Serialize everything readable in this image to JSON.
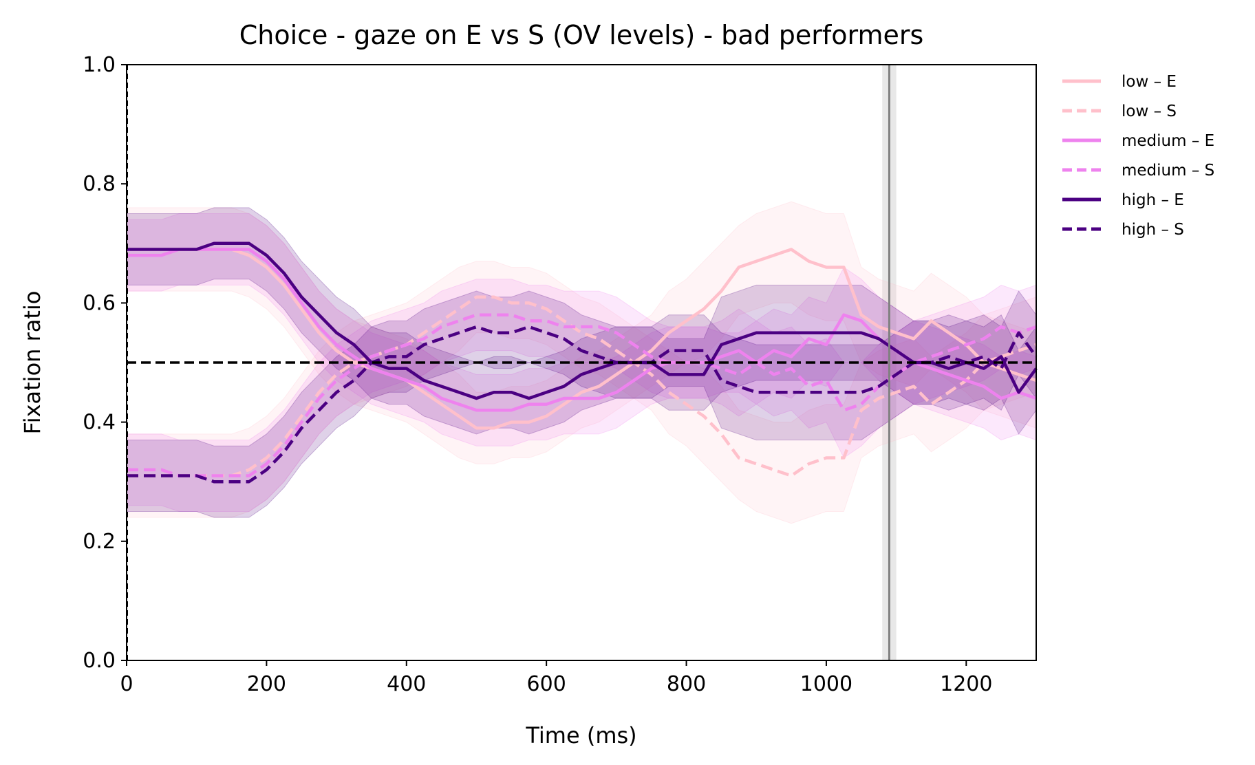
{
  "chart_data": {
    "type": "line",
    "title": "Choice - gaze on E vs S (OV levels) - bad performers",
    "xlabel": "Time (ms)",
    "ylabel": "Fixation ratio",
    "xlim": [
      0,
      1300
    ],
    "ylim": [
      0.0,
      1.0
    ],
    "xticks": [
      0,
      200,
      400,
      600,
      800,
      1000,
      1200
    ],
    "yticks": [
      0.0,
      0.2,
      0.4,
      0.6,
      0.8,
      1.0
    ],
    "xtick_labels": [
      "0",
      "200",
      "400",
      "600",
      "800",
      "1000",
      "1200"
    ],
    "ytick_labels": [
      "0.0",
      "0.2",
      "0.4",
      "0.6",
      "0.8",
      "1.0"
    ],
    "grid": false,
    "legend_position": "outside-right",
    "reference_lines": {
      "horizontal_dashed_y": 0.5,
      "vertical_dashed_x": 0,
      "vertical_solid_x": 1090,
      "vertical_band_x": [
        1080,
        1100
      ]
    },
    "x": [
      0,
      25,
      50,
      75,
      100,
      125,
      150,
      175,
      200,
      225,
      250,
      275,
      300,
      325,
      350,
      375,
      400,
      425,
      450,
      475,
      500,
      525,
      550,
      575,
      600,
      625,
      650,
      675,
      700,
      725,
      750,
      775,
      800,
      825,
      850,
      875,
      900,
      925,
      950,
      975,
      1000,
      1025,
      1050,
      1075,
      1100,
      1125,
      1150,
      1175,
      1200,
      1225,
      1250,
      1275,
      1300
    ],
    "series": [
      {
        "name": "low – E",
        "color": "#ffc0cb",
        "dash": "solid",
        "values": [
          0.69,
          0.69,
          0.69,
          0.69,
          0.69,
          0.69,
          0.69,
          0.68,
          0.66,
          0.63,
          0.59,
          0.55,
          0.52,
          0.5,
          0.49,
          0.48,
          0.47,
          0.45,
          0.43,
          0.41,
          0.39,
          0.39,
          0.4,
          0.4,
          0.41,
          0.43,
          0.45,
          0.46,
          0.48,
          0.5,
          0.52,
          0.55,
          0.57,
          0.59,
          0.62,
          0.66,
          0.67,
          0.68,
          0.69,
          0.67,
          0.66,
          0.66,
          0.58,
          0.56,
          0.55,
          0.54,
          0.57,
          0.55,
          0.53,
          0.5,
          0.49,
          0.48,
          0.47
        ],
        "ci_low": [
          0.62,
          0.62,
          0.62,
          0.62,
          0.62,
          0.62,
          0.62,
          0.61,
          0.59,
          0.56,
          0.52,
          0.48,
          0.45,
          0.43,
          0.42,
          0.41,
          0.4,
          0.38,
          0.36,
          0.34,
          0.33,
          0.33,
          0.34,
          0.34,
          0.35,
          0.37,
          0.39,
          0.4,
          0.42,
          0.44,
          0.46,
          0.48,
          0.5,
          0.51,
          0.54,
          0.58,
          0.59,
          0.6,
          0.6,
          0.58,
          0.57,
          0.57,
          0.5,
          0.48,
          0.47,
          0.46,
          0.49,
          0.47,
          0.45,
          0.42,
          0.41,
          0.4,
          0.39
        ],
        "ci_high": [
          0.76,
          0.76,
          0.76,
          0.76,
          0.76,
          0.76,
          0.76,
          0.75,
          0.73,
          0.7,
          0.66,
          0.62,
          0.59,
          0.57,
          0.56,
          0.55,
          0.54,
          0.52,
          0.5,
          0.48,
          0.45,
          0.45,
          0.46,
          0.46,
          0.47,
          0.49,
          0.51,
          0.52,
          0.54,
          0.56,
          0.58,
          0.62,
          0.64,
          0.67,
          0.7,
          0.73,
          0.75,
          0.76,
          0.77,
          0.76,
          0.75,
          0.75,
          0.66,
          0.64,
          0.63,
          0.62,
          0.65,
          0.63,
          0.61,
          0.58,
          0.57,
          0.56,
          0.55
        ]
      },
      {
        "name": "low – S",
        "color": "#ffc0cb",
        "dash": "dashed",
        "values": [
          0.31,
          0.31,
          0.31,
          0.31,
          0.31,
          0.31,
          0.31,
          0.32,
          0.34,
          0.37,
          0.41,
          0.45,
          0.48,
          0.5,
          0.51,
          0.52,
          0.53,
          0.55,
          0.57,
          0.59,
          0.61,
          0.61,
          0.6,
          0.6,
          0.59,
          0.57,
          0.55,
          0.54,
          0.52,
          0.5,
          0.48,
          0.45,
          0.43,
          0.41,
          0.38,
          0.34,
          0.33,
          0.32,
          0.31,
          0.33,
          0.34,
          0.34,
          0.42,
          0.44,
          0.45,
          0.46,
          0.43,
          0.45,
          0.47,
          0.5,
          0.51,
          0.52,
          0.53
        ],
        "ci_low": [
          0.24,
          0.24,
          0.24,
          0.24,
          0.24,
          0.24,
          0.24,
          0.25,
          0.27,
          0.3,
          0.34,
          0.38,
          0.41,
          0.43,
          0.44,
          0.45,
          0.46,
          0.48,
          0.5,
          0.52,
          0.55,
          0.55,
          0.54,
          0.54,
          0.53,
          0.51,
          0.49,
          0.48,
          0.46,
          0.44,
          0.42,
          0.38,
          0.36,
          0.33,
          0.3,
          0.27,
          0.25,
          0.24,
          0.23,
          0.24,
          0.25,
          0.25,
          0.34,
          0.36,
          0.37,
          0.38,
          0.35,
          0.37,
          0.39,
          0.42,
          0.43,
          0.44,
          0.45
        ],
        "ci_high": [
          0.38,
          0.38,
          0.38,
          0.38,
          0.38,
          0.38,
          0.38,
          0.39,
          0.41,
          0.44,
          0.48,
          0.52,
          0.55,
          0.57,
          0.58,
          0.59,
          0.6,
          0.62,
          0.64,
          0.66,
          0.67,
          0.67,
          0.66,
          0.66,
          0.65,
          0.63,
          0.61,
          0.6,
          0.58,
          0.56,
          0.54,
          0.52,
          0.5,
          0.49,
          0.46,
          0.42,
          0.41,
          0.4,
          0.4,
          0.42,
          0.43,
          0.43,
          0.5,
          0.52,
          0.53,
          0.54,
          0.51,
          0.53,
          0.55,
          0.58,
          0.59,
          0.6,
          0.61
        ]
      },
      {
        "name": "medium – E",
        "color": "#ee82ee",
        "dash": "solid",
        "values": [
          0.68,
          0.68,
          0.68,
          0.69,
          0.69,
          0.69,
          0.69,
          0.69,
          0.67,
          0.64,
          0.6,
          0.56,
          0.53,
          0.51,
          0.49,
          0.48,
          0.47,
          0.46,
          0.44,
          0.43,
          0.42,
          0.42,
          0.42,
          0.43,
          0.43,
          0.44,
          0.44,
          0.44,
          0.45,
          0.47,
          0.49,
          0.5,
          0.5,
          0.5,
          0.51,
          0.52,
          0.5,
          0.52,
          0.51,
          0.54,
          0.53,
          0.58,
          0.57,
          0.54,
          0.52,
          0.5,
          0.49,
          0.48,
          0.47,
          0.46,
          0.44,
          0.45,
          0.44
        ],
        "ci_low": [
          0.62,
          0.62,
          0.62,
          0.63,
          0.63,
          0.63,
          0.63,
          0.63,
          0.61,
          0.58,
          0.54,
          0.5,
          0.47,
          0.45,
          0.43,
          0.42,
          0.41,
          0.4,
          0.38,
          0.37,
          0.36,
          0.36,
          0.36,
          0.37,
          0.37,
          0.38,
          0.38,
          0.38,
          0.39,
          0.41,
          0.43,
          0.44,
          0.44,
          0.44,
          0.45,
          0.45,
          0.43,
          0.45,
          0.44,
          0.47,
          0.46,
          0.5,
          0.5,
          0.47,
          0.45,
          0.43,
          0.42,
          0.41,
          0.4,
          0.39,
          0.37,
          0.38,
          0.37
        ],
        "ci_high": [
          0.74,
          0.74,
          0.74,
          0.75,
          0.75,
          0.75,
          0.75,
          0.75,
          0.73,
          0.7,
          0.66,
          0.62,
          0.59,
          0.57,
          0.55,
          0.54,
          0.53,
          0.52,
          0.5,
          0.49,
          0.48,
          0.48,
          0.48,
          0.49,
          0.49,
          0.5,
          0.5,
          0.5,
          0.51,
          0.53,
          0.55,
          0.56,
          0.56,
          0.56,
          0.57,
          0.59,
          0.57,
          0.59,
          0.58,
          0.61,
          0.6,
          0.66,
          0.64,
          0.61,
          0.59,
          0.57,
          0.56,
          0.55,
          0.54,
          0.53,
          0.51,
          0.52,
          0.51
        ]
      },
      {
        "name": "medium – S",
        "color": "#ee82ee",
        "dash": "dashed",
        "values": [
          0.32,
          0.32,
          0.32,
          0.31,
          0.31,
          0.31,
          0.31,
          0.31,
          0.33,
          0.36,
          0.4,
          0.44,
          0.47,
          0.49,
          0.51,
          0.52,
          0.53,
          0.54,
          0.56,
          0.57,
          0.58,
          0.58,
          0.58,
          0.57,
          0.57,
          0.56,
          0.56,
          0.56,
          0.55,
          0.53,
          0.51,
          0.5,
          0.5,
          0.5,
          0.49,
          0.48,
          0.5,
          0.48,
          0.49,
          0.46,
          0.47,
          0.42,
          0.43,
          0.46,
          0.48,
          0.5,
          0.51,
          0.52,
          0.53,
          0.54,
          0.56,
          0.55,
          0.56
        ],
        "ci_low": [
          0.26,
          0.26,
          0.26,
          0.25,
          0.25,
          0.25,
          0.25,
          0.25,
          0.27,
          0.3,
          0.34,
          0.38,
          0.41,
          0.43,
          0.45,
          0.46,
          0.47,
          0.48,
          0.5,
          0.51,
          0.52,
          0.52,
          0.52,
          0.51,
          0.51,
          0.5,
          0.5,
          0.5,
          0.49,
          0.47,
          0.45,
          0.44,
          0.44,
          0.44,
          0.43,
          0.41,
          0.43,
          0.41,
          0.42,
          0.39,
          0.4,
          0.34,
          0.36,
          0.39,
          0.41,
          0.43,
          0.44,
          0.45,
          0.46,
          0.47,
          0.49,
          0.48,
          0.49
        ],
        "ci_high": [
          0.38,
          0.38,
          0.38,
          0.37,
          0.37,
          0.37,
          0.37,
          0.37,
          0.39,
          0.42,
          0.46,
          0.5,
          0.53,
          0.55,
          0.57,
          0.58,
          0.59,
          0.6,
          0.62,
          0.63,
          0.64,
          0.64,
          0.64,
          0.63,
          0.63,
          0.62,
          0.62,
          0.62,
          0.61,
          0.59,
          0.57,
          0.56,
          0.56,
          0.56,
          0.55,
          0.55,
          0.57,
          0.55,
          0.56,
          0.53,
          0.54,
          0.5,
          0.5,
          0.53,
          0.55,
          0.57,
          0.58,
          0.59,
          0.6,
          0.61,
          0.63,
          0.62,
          0.63
        ]
      },
      {
        "name": "high – E",
        "color": "#4b0082",
        "dash": "solid",
        "values": [
          0.69,
          0.69,
          0.69,
          0.69,
          0.69,
          0.7,
          0.7,
          0.7,
          0.68,
          0.65,
          0.61,
          0.58,
          0.55,
          0.53,
          0.5,
          0.49,
          0.49,
          0.47,
          0.46,
          0.45,
          0.44,
          0.45,
          0.45,
          0.44,
          0.45,
          0.46,
          0.48,
          0.49,
          0.5,
          0.5,
          0.5,
          0.48,
          0.48,
          0.48,
          0.53,
          0.54,
          0.55,
          0.55,
          0.55,
          0.55,
          0.55,
          0.55,
          0.55,
          0.54,
          0.52,
          0.5,
          0.5,
          0.49,
          0.5,
          0.49,
          0.51,
          0.45,
          0.49
        ],
        "ci_low": [
          0.63,
          0.63,
          0.63,
          0.63,
          0.63,
          0.64,
          0.64,
          0.64,
          0.62,
          0.59,
          0.55,
          0.52,
          0.49,
          0.47,
          0.44,
          0.43,
          0.43,
          0.41,
          0.4,
          0.39,
          0.38,
          0.39,
          0.39,
          0.38,
          0.39,
          0.4,
          0.42,
          0.43,
          0.44,
          0.44,
          0.44,
          0.42,
          0.42,
          0.42,
          0.45,
          0.46,
          0.47,
          0.47,
          0.47,
          0.47,
          0.47,
          0.47,
          0.47,
          0.47,
          0.45,
          0.43,
          0.43,
          0.42,
          0.43,
          0.42,
          0.44,
          0.38,
          0.42
        ],
        "ci_high": [
          0.75,
          0.75,
          0.75,
          0.75,
          0.75,
          0.76,
          0.76,
          0.76,
          0.74,
          0.71,
          0.67,
          0.64,
          0.61,
          0.59,
          0.56,
          0.55,
          0.55,
          0.53,
          0.52,
          0.51,
          0.5,
          0.51,
          0.51,
          0.5,
          0.51,
          0.52,
          0.54,
          0.55,
          0.56,
          0.56,
          0.56,
          0.54,
          0.54,
          0.54,
          0.61,
          0.62,
          0.63,
          0.63,
          0.63,
          0.63,
          0.63,
          0.63,
          0.63,
          0.61,
          0.59,
          0.57,
          0.57,
          0.56,
          0.57,
          0.56,
          0.58,
          0.52,
          0.56
        ]
      },
      {
        "name": "high – S",
        "color": "#4b0082",
        "dash": "dashed",
        "values": [
          0.31,
          0.31,
          0.31,
          0.31,
          0.31,
          0.3,
          0.3,
          0.3,
          0.32,
          0.35,
          0.39,
          0.42,
          0.45,
          0.47,
          0.5,
          0.51,
          0.51,
          0.53,
          0.54,
          0.55,
          0.56,
          0.55,
          0.55,
          0.56,
          0.55,
          0.54,
          0.52,
          0.51,
          0.5,
          0.5,
          0.5,
          0.52,
          0.52,
          0.52,
          0.47,
          0.46,
          0.45,
          0.45,
          0.45,
          0.45,
          0.45,
          0.45,
          0.45,
          0.46,
          0.48,
          0.5,
          0.5,
          0.51,
          0.5,
          0.51,
          0.49,
          0.55,
          0.51
        ],
        "ci_low": [
          0.25,
          0.25,
          0.25,
          0.25,
          0.25,
          0.24,
          0.24,
          0.24,
          0.26,
          0.29,
          0.33,
          0.36,
          0.39,
          0.41,
          0.44,
          0.45,
          0.45,
          0.47,
          0.48,
          0.49,
          0.5,
          0.49,
          0.49,
          0.5,
          0.49,
          0.48,
          0.46,
          0.45,
          0.44,
          0.44,
          0.44,
          0.46,
          0.46,
          0.46,
          0.39,
          0.38,
          0.37,
          0.37,
          0.37,
          0.37,
          0.37,
          0.37,
          0.37,
          0.39,
          0.41,
          0.43,
          0.43,
          0.44,
          0.43,
          0.44,
          0.42,
          0.48,
          0.44
        ],
        "ci_high": [
          0.37,
          0.37,
          0.37,
          0.37,
          0.37,
          0.36,
          0.36,
          0.36,
          0.38,
          0.41,
          0.45,
          0.48,
          0.51,
          0.53,
          0.56,
          0.57,
          0.57,
          0.59,
          0.6,
          0.61,
          0.62,
          0.61,
          0.61,
          0.62,
          0.61,
          0.6,
          0.58,
          0.57,
          0.56,
          0.56,
          0.56,
          0.58,
          0.58,
          0.58,
          0.55,
          0.54,
          0.53,
          0.53,
          0.53,
          0.53,
          0.53,
          0.53,
          0.53,
          0.53,
          0.55,
          0.57,
          0.57,
          0.58,
          0.57,
          0.58,
          0.56,
          0.62,
          0.58
        ]
      }
    ]
  }
}
